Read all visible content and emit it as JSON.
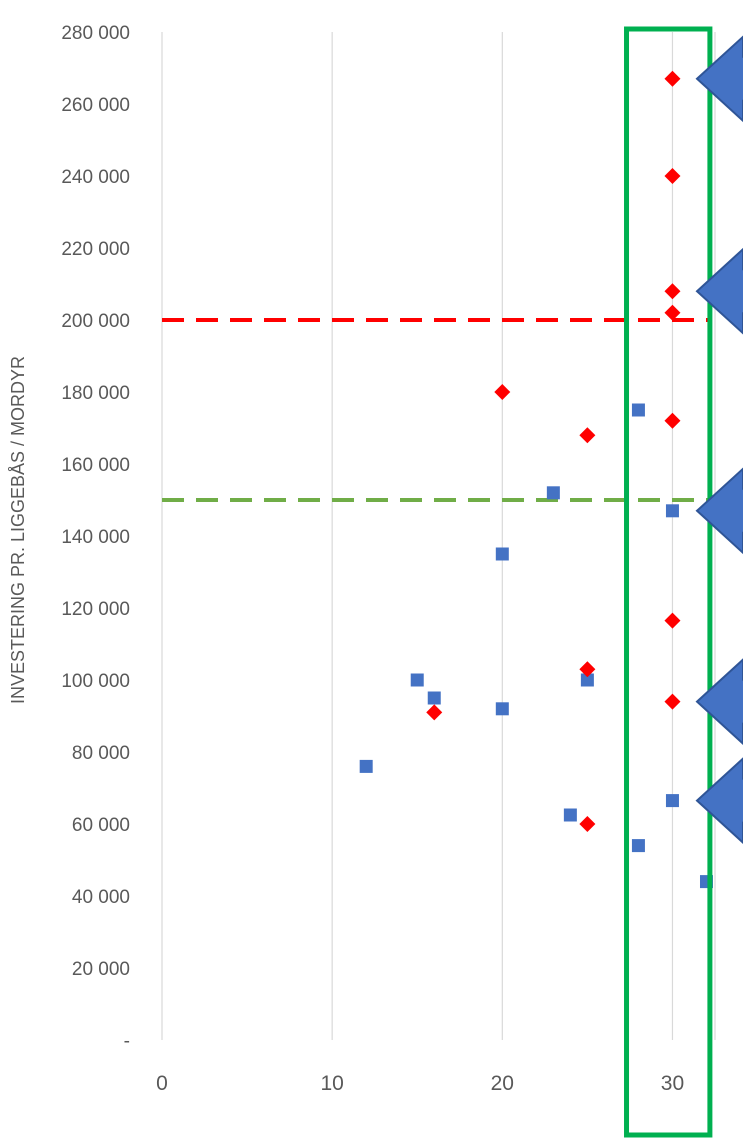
{
  "chart_data": {
    "type": "scatter",
    "ylabel": "INVESTERING PR. LIGGEBÅS / MORDYR",
    "xlabel": "",
    "title": "",
    "xlim": [
      0,
      32.5
    ],
    "ylim": [
      0,
      280000
    ],
    "x_ticks": [
      0,
      10,
      20,
      30
    ],
    "x_tick_labels": [
      "0",
      "10",
      "20",
      "30"
    ],
    "y_ticks": [
      0,
      20000,
      40000,
      60000,
      80000,
      100000,
      120000,
      140000,
      160000,
      180000,
      200000,
      220000,
      240000,
      260000,
      280000
    ],
    "y_tick_labels": [
      "-",
      "20 000",
      "40 000",
      "60 000",
      "80 000",
      "100 000",
      "120 000",
      "140 000",
      "160 000",
      "180 000",
      "200 000",
      "220 000",
      "240 000",
      "260 000",
      "280 000"
    ],
    "grid": "vertical",
    "series": [
      {
        "marker": "square",
        "color": "#4472C4",
        "points": [
          {
            "x": 12,
            "y": 76000
          },
          {
            "x": 15,
            "y": 100000
          },
          {
            "x": 16,
            "y": 95000
          },
          {
            "x": 20,
            "y": 135000
          },
          {
            "x": 20,
            "y": 92000
          },
          {
            "x": 23,
            "y": 152000
          },
          {
            "x": 24,
            "y": 62500
          },
          {
            "x": 25,
            "y": 100000
          },
          {
            "x": 28,
            "y": 175000
          },
          {
            "x": 28,
            "y": 54000
          },
          {
            "x": 30,
            "y": 147000
          },
          {
            "x": 30,
            "y": 66500
          },
          {
            "x": 32,
            "y": 44000
          }
        ]
      },
      {
        "marker": "diamond",
        "color": "#FF0000",
        "points": [
          {
            "x": 16,
            "y": 91000
          },
          {
            "x": 20,
            "y": 180000
          },
          {
            "x": 25,
            "y": 168000
          },
          {
            "x": 25,
            "y": 103000
          },
          {
            "x": 25,
            "y": 60000
          },
          {
            "x": 30,
            "y": 267000
          },
          {
            "x": 30,
            "y": 240000
          },
          {
            "x": 30,
            "y": 208000
          },
          {
            "x": 30,
            "y": 202000
          },
          {
            "x": 30,
            "y": 172000
          },
          {
            "x": 30,
            "y": 116500
          },
          {
            "x": 30,
            "y": 94000
          }
        ]
      }
    ],
    "reference_lines": [
      {
        "y": 200000,
        "color": "#FF0000",
        "style": "dashed"
      },
      {
        "y": 150000,
        "color": "#70AD47",
        "style": "dashed"
      }
    ],
    "highlight_box": {
      "x_from": 27.3,
      "x_to": 32.2,
      "color": "#00B050"
    },
    "arrows": [
      {
        "points_to_y": 267000,
        "color": "#4472C4",
        "direction": "left"
      },
      {
        "points_to_y": 208000,
        "color": "#4472C4",
        "direction": "left"
      },
      {
        "points_to_y": 147000,
        "color": "#4472C4",
        "direction": "left"
      },
      {
        "points_to_y": 94000,
        "color": "#4472C4",
        "direction": "left"
      },
      {
        "points_to_y": 66500,
        "color": "#4472C4",
        "direction": "left"
      }
    ]
  }
}
